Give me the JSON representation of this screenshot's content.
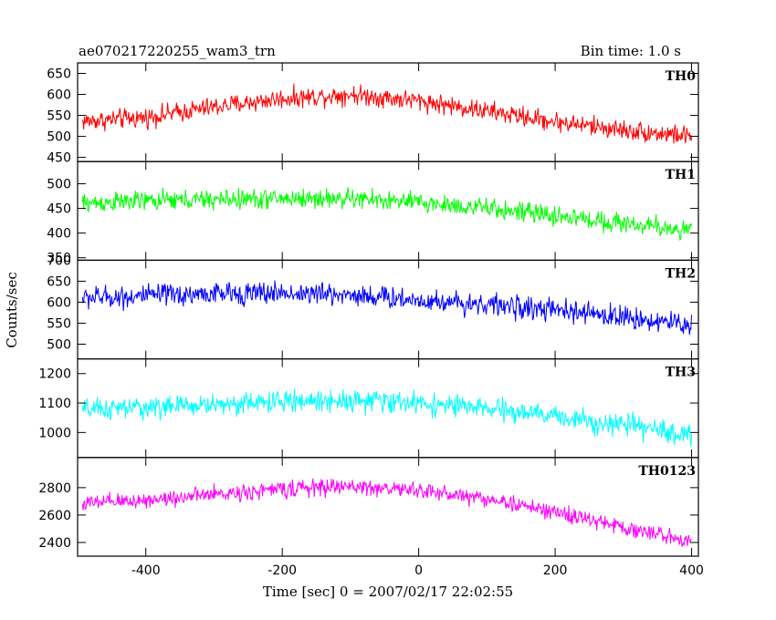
{
  "chart_data": {
    "type": "line",
    "title_left": "ae070217220255_wam3_trn",
    "title_right": "Bin time: 1.0 s",
    "xlabel": "Time [sec] 0 = 2007/02/17 22:02:55",
    "ylabel": "Counts/sec",
    "xlim": [
      -500,
      410
    ],
    "x_ticks": [
      -400,
      -200,
      0,
      200,
      400
    ],
    "grid": false,
    "panels": [
      {
        "name": "TH0",
        "color": "#ff0000",
        "ylim": [
          440,
          675
        ],
        "y_ticks": [
          450,
          500,
          550,
          600,
          650
        ],
        "trend": {
          "x": [
            -500,
            -400,
            -300,
            -200,
            -100,
            0,
            100,
            200,
            300,
            400
          ],
          "y": [
            535,
            545,
            570,
            590,
            600,
            585,
            560,
            535,
            515,
            500
          ]
        },
        "noise_amplitude": 35
      },
      {
        "name": "TH1",
        "color": "#00ff00",
        "ylim": [
          345,
          545
        ],
        "y_ticks": [
          350,
          400,
          450,
          500
        ],
        "trend": {
          "x": [
            -500,
            -400,
            -300,
            -200,
            -100,
            0,
            100,
            200,
            300,
            400
          ],
          "y": [
            460,
            465,
            468,
            470,
            470,
            462,
            450,
            435,
            420,
            405
          ]
        },
        "noise_amplitude": 30
      },
      {
        "name": "TH2",
        "color": "#0000ff",
        "ylim": [
          465,
          700
        ],
        "y_ticks": [
          500,
          550,
          600,
          650,
          700
        ],
        "trend": {
          "x": [
            -500,
            -400,
            -300,
            -200,
            -100,
            0,
            100,
            200,
            300,
            400
          ],
          "y": [
            610,
            615,
            620,
            622,
            618,
            605,
            595,
            580,
            565,
            545
          ]
        },
        "noise_amplitude": 40
      },
      {
        "name": "TH3",
        "color": "#00ffff",
        "ylim": [
          915,
          1250
        ],
        "y_ticks": [
          1000,
          1100,
          1200
        ],
        "trend": {
          "x": [
            -500,
            -400,
            -300,
            -200,
            -100,
            0,
            100,
            200,
            300,
            400
          ],
          "y": [
            1075,
            1085,
            1095,
            1105,
            1110,
            1100,
            1080,
            1055,
            1025,
            990
          ]
        },
        "noise_amplitude": 55
      },
      {
        "name": "TH0123",
        "color": "#ff00ff",
        "ylim": [
          2300,
          3020
        ],
        "y_ticks": [
          2400,
          2600,
          2800
        ],
        "trend": {
          "x": [
            -500,
            -400,
            -300,
            -200,
            -100,
            0,
            100,
            200,
            300,
            400
          ],
          "y": [
            2680,
            2710,
            2750,
            2790,
            2810,
            2780,
            2720,
            2620,
            2510,
            2410
          ]
        },
        "noise_amplitude": 90
      }
    ]
  }
}
